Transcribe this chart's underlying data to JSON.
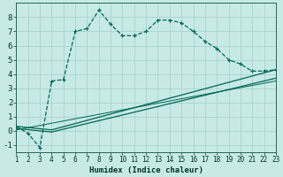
{
  "xlabel": "Humidex (Indice chaleur)",
  "background_color": "#c8eae6",
  "grid_color": "#a8d4ce",
  "line_color": "#006655",
  "xlim": [
    1,
    23
  ],
  "ylim": [
    -1.5,
    9.0
  ],
  "xticks": [
    1,
    2,
    3,
    4,
    5,
    6,
    7,
    8,
    9,
    10,
    11,
    12,
    13,
    14,
    15,
    16,
    17,
    18,
    19,
    20,
    21,
    22,
    23
  ],
  "yticks": [
    -1,
    0,
    1,
    2,
    3,
    4,
    5,
    6,
    7,
    8
  ],
  "line1_x": [
    1,
    2,
    3,
    4,
    5,
    6,
    7,
    8,
    9,
    10,
    11,
    12,
    13,
    14,
    15,
    16,
    17,
    18,
    19,
    20,
    21,
    22,
    23
  ],
  "line1_y": [
    0.3,
    -0.2,
    -1.2,
    3.5,
    3.6,
    7.0,
    7.2,
    8.5,
    7.5,
    6.7,
    6.7,
    7.0,
    7.8,
    7.8,
    7.6,
    7.0,
    6.3,
    5.8,
    5.0,
    4.7,
    4.2,
    4.2,
    4.3
  ],
  "line2_x": [
    1,
    4,
    23
  ],
  "line2_y": [
    0.3,
    0.05,
    4.3
  ],
  "line3_x": [
    1,
    4,
    23
  ],
  "line3_y": [
    0.15,
    -0.1,
    3.7
  ],
  "line4_x": [
    1,
    23
  ],
  "line4_y": [
    0.05,
    3.5
  ]
}
